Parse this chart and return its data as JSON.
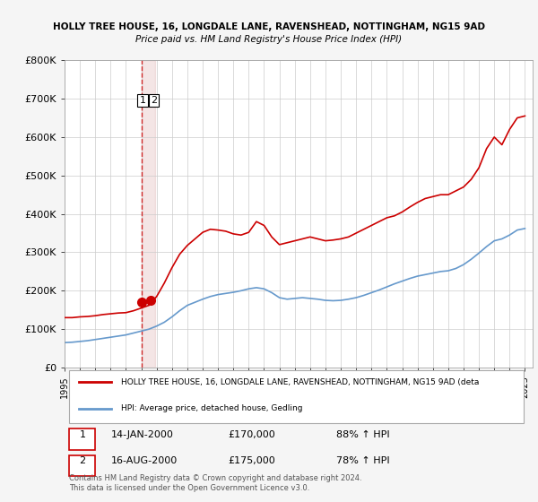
{
  "title1": "HOLLY TREE HOUSE, 16, LONGDALE LANE, RAVENSHEAD, NOTTINGHAM, NG15 9AD",
  "title2": "Price paid vs. HM Land Registry's House Price Index (HPI)",
  "xlabel": "",
  "ylabel": "",
  "ylim": [
    0,
    800000
  ],
  "yticks": [
    0,
    100000,
    200000,
    300000,
    400000,
    500000,
    600000,
    700000,
    800000
  ],
  "ytick_labels": [
    "£0",
    "£100K",
    "£200K",
    "£300K",
    "£400K",
    "£500K",
    "£600K",
    "£700K",
    "£800K"
  ],
  "xlim_start": 1995.0,
  "xlim_end": 2025.5,
  "xticks": [
    1995,
    1996,
    1997,
    1998,
    1999,
    2000,
    2001,
    2002,
    2003,
    2004,
    2005,
    2006,
    2007,
    2008,
    2009,
    2010,
    2011,
    2012,
    2013,
    2014,
    2015,
    2016,
    2017,
    2018,
    2019,
    2020,
    2021,
    2022,
    2023,
    2024,
    2025
  ],
  "red_line_color": "#cc0000",
  "blue_line_color": "#6699cc",
  "transaction1_date": 2000.04,
  "transaction1_price": 170000,
  "transaction1_label": "1",
  "transaction2_date": 2000.62,
  "transaction2_price": 175000,
  "transaction2_label": "2",
  "vline_color": "#cc0000",
  "vband_color": "#ddaaaa",
  "vband_alpha": 0.3,
  "legend_red_label": "HOLLY TREE HOUSE, 16, LONGDALE LANE, RAVENSHEAD, NOTTINGHAM, NG15 9AD (deta",
  "legend_blue_label": "HPI: Average price, detached house, Gedling",
  "table_row1": [
    "1",
    "14-JAN-2000",
    "£170,000",
    "88% ↑ HPI"
  ],
  "table_row2": [
    "2",
    "16-AUG-2000",
    "£175,000",
    "78% ↑ HPI"
  ],
  "footnote": "Contains HM Land Registry data © Crown copyright and database right 2024.\nThis data is licensed under the Open Government Licence v3.0.",
  "bg_color": "#f5f5f5",
  "plot_bg_color": "#ffffff",
  "grid_color": "#cccccc"
}
